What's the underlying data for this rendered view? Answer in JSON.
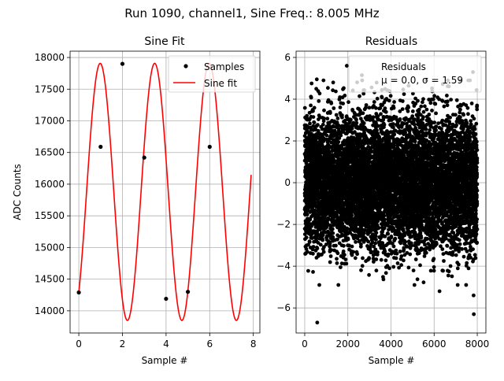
{
  "suptitle": "Run 1090, channel1, Sine Freq.: 8.005 MHz",
  "chart_data": [
    {
      "type": "scatter",
      "title": "Sine Fit",
      "xlabel": "Sample #",
      "ylabel": "ADC Counts",
      "xlim": [
        -0.4,
        8.3
      ],
      "ylim": [
        13650,
        18100
      ],
      "grid": true,
      "xticks": [
        0,
        2,
        4,
        6,
        8
      ],
      "xtick_labels": [
        "0",
        "2",
        "4",
        "6",
        "8"
      ],
      "yticks": [
        14000,
        14500,
        15000,
        15500,
        16000,
        16500,
        17000,
        17500,
        18000
      ],
      "ytick_labels": [
        "14000",
        "14500",
        "15000",
        "15500",
        "16000",
        "16500",
        "17000",
        "17500",
        "18000"
      ],
      "legend": {
        "placement": "top-right",
        "entries": [
          "Samples",
          "Sine fit"
        ]
      },
      "series": [
        {
          "name": "Samples",
          "kind": "markers",
          "color": "#000000",
          "x": [
            0,
            1,
            2,
            3,
            4,
            5,
            6
          ],
          "y": [
            14290,
            16590,
            17900,
            16420,
            14190,
            14300,
            16590
          ]
        },
        {
          "name": "Sine fit",
          "kind": "line",
          "color": "#ff0000",
          "function": {
            "form": "offset + amplitude*sin(omega*x + phase)",
            "offset": 15878,
            "amplitude": 2030,
            "omega": 2.516,
            "phase": -0.894
          },
          "x_range": [
            0,
            7.9
          ]
        }
      ]
    },
    {
      "type": "scatter",
      "title": "Residuals",
      "xlabel": "Sample #",
      "ylabel": "",
      "xlim": [
        -400,
        8400
      ],
      "ylim": [
        -7.2,
        6.3
      ],
      "grid": true,
      "xticks": [
        0,
        2000,
        4000,
        6000,
        8000
      ],
      "xtick_labels": [
        "0",
        "2000",
        "4000",
        "6000",
        "8000"
      ],
      "yticks": [
        -6,
        -4,
        -2,
        0,
        2,
        4,
        6
      ],
      "ytick_labels": [
        "−6",
        "−4",
        "−2",
        "0",
        "2",
        "4",
        "6"
      ],
      "legend": {
        "placement": "top-right",
        "entries": [
          "Residuals",
          "μ = 0.0, σ = 1.59"
        ]
      },
      "series": [
        {
          "name": "Residuals",
          "kind": "markers",
          "color": "#000000",
          "mean": 0.0,
          "std": 1.59,
          "x_range": [
            0,
            7999
          ],
          "n_points": 8000,
          "notable_points": [
            {
              "x": 580,
              "y": -6.7
            },
            {
              "x": 7840,
              "y": -6.3
            },
            {
              "x": 2650,
              "y": 5.15
            },
            {
              "x": 1950,
              "y": 5.6
            },
            {
              "x": 7800,
              "y": 5.3
            },
            {
              "x": 560,
              "y": 4.95
            },
            {
              "x": 6250,
              "y": -5.2
            },
            {
              "x": 7830,
              "y": -5.4
            }
          ]
        }
      ]
    }
  ]
}
